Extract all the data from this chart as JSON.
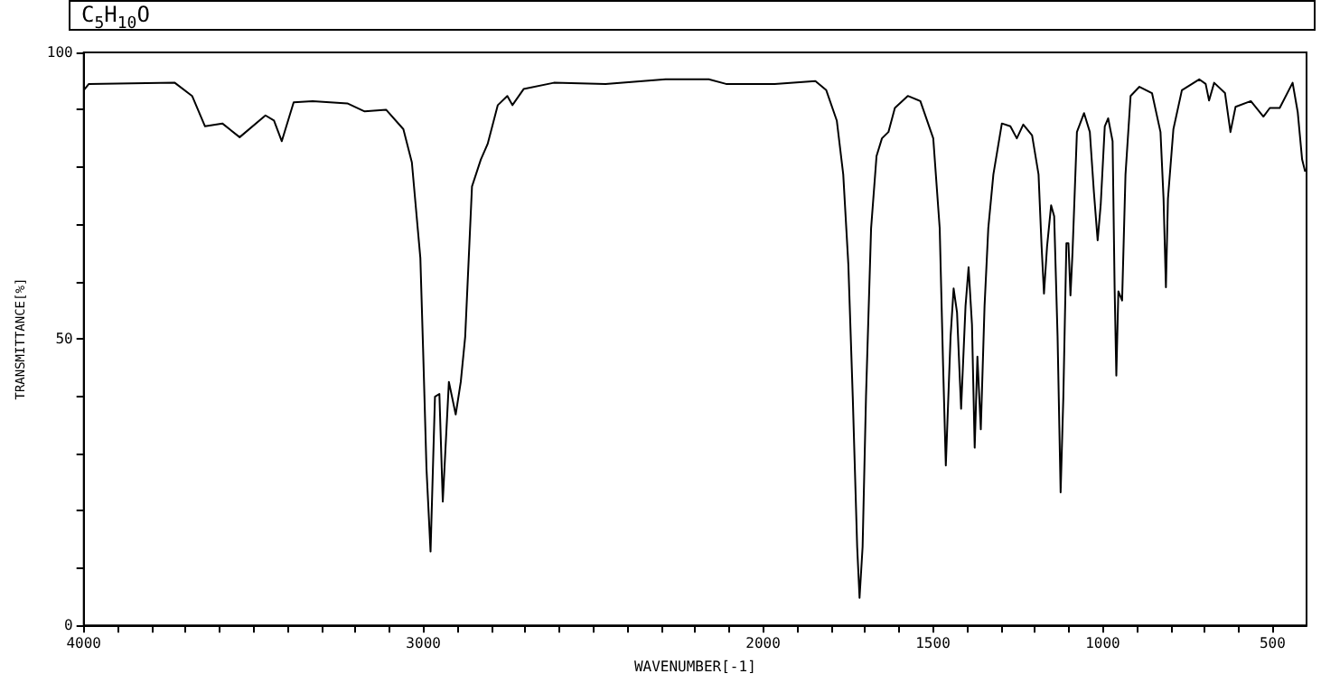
{
  "chart_data": {
    "type": "line",
    "title": "C$_{5}$H$_{10}$O",
    "xlabel": "WAVENUMBER[-1]",
    "ylabel": "TRANSMITTANCE[%]",
    "color": "#000000",
    "marker": "none",
    "x": [
      4000,
      3985,
      3732,
      3681,
      3643,
      3592,
      3541,
      3465,
      3440,
      3417,
      3382,
      3326,
      3224,
      3173,
      3110,
      3059,
      3034,
      3009,
      3001,
      2991,
      2979,
      2966,
      2953,
      2943,
      2925,
      2905,
      2890,
      2877,
      2857,
      2831,
      2811,
      2781,
      2753,
      2738,
      2705,
      2616,
      2464,
      2287,
      2160,
      2109,
      1966,
      1846,
      1814,
      1783,
      1764,
      1749,
      1736,
      1723,
      1716,
      1707,
      1697,
      1682,
      1666,
      1650,
      1631,
      1612,
      1574,
      1537,
      1499,
      1480,
      1470,
      1462,
      1448,
      1439,
      1429,
      1417,
      1404,
      1395,
      1385,
      1377,
      1369,
      1359,
      1348,
      1337,
      1322,
      1297,
      1272,
      1253,
      1234,
      1208,
      1189,
      1180,
      1173,
      1164,
      1152,
      1143,
      1133,
      1124,
      1116,
      1107,
      1101,
      1095,
      1089,
      1076,
      1055,
      1038,
      1026,
      1015,
      1006,
      994,
      984,
      971,
      965,
      960,
      954,
      943,
      933,
      918,
      892,
      855,
      830,
      821,
      814,
      808,
      792,
      767,
      716,
      697,
      687,
      672,
      640,
      624,
      609,
      564,
      527,
      508,
      479,
      441,
      426,
      413,
      404
    ],
    "values": [
      93.4,
      94.5,
      94.7,
      92.4,
      87.1,
      87.6,
      85.2,
      89.0,
      88.1,
      84.5,
      91.3,
      91.5,
      91.1,
      89.7,
      90.0,
      86.6,
      80.8,
      64.1,
      48.3,
      27.4,
      12.9,
      39.9,
      40.4,
      21.6,
      42.5,
      36.8,
      42.5,
      50.4,
      76.6,
      81.3,
      84.0,
      90.8,
      92.4,
      90.8,
      93.6,
      94.7,
      94.5,
      95.3,
      95.3,
      94.5,
      94.5,
      95.0,
      93.4,
      88.1,
      78.7,
      63.0,
      39.9,
      13.7,
      4.8,
      13.7,
      39.9,
      69.3,
      81.9,
      85.0,
      86.1,
      90.3,
      92.4,
      91.5,
      85.0,
      69.3,
      45.3,
      27.9,
      50.4,
      58.8,
      54.6,
      37.8,
      55.7,
      62.5,
      52.5,
      31.0,
      46.9,
      34.2,
      55.7,
      69.3,
      78.7,
      87.6,
      87.1,
      85.0,
      87.4,
      85.5,
      78.7,
      66.1,
      57.9,
      66.1,
      73.3,
      71.4,
      50.4,
      23.2,
      39.9,
      66.7,
      66.7,
      57.6,
      65.1,
      86.1,
      89.4,
      86.1,
      75.6,
      67.2,
      73.4,
      87.1,
      88.5,
      84.5,
      58.8,
      43.6,
      58.3,
      56.7,
      78.7,
      92.4,
      94.0,
      92.9,
      86.1,
      74.5,
      59.0,
      74.5,
      86.6,
      93.4,
      95.3,
      94.5,
      91.6,
      94.7,
      92.9,
      86.1,
      90.5,
      91.5,
      88.8,
      90.3,
      90.3,
      94.7,
      89.6,
      81.3,
      79.2
    ],
    "xlim": [
      4000,
      400
    ],
    "xticks": [
      4000,
      {
        "value": 3900,
        "label": null
      },
      {
        "value": 3800,
        "label": null
      },
      {
        "value": 3700,
        "label": null
      },
      {
        "value": 3600,
        "label": null
      },
      {
        "value": 3500,
        "label": null
      },
      {
        "value": 3400,
        "label": null
      },
      {
        "value": 3300,
        "label": null
      },
      {
        "value": 3200,
        "label": null
      },
      {
        "value": 3100,
        "label": null
      },
      3000,
      {
        "value": 2900,
        "label": null
      },
      {
        "value": 2800,
        "label": null
      },
      {
        "value": 2700,
        "label": null
      },
      {
        "value": 2600,
        "label": null
      },
      {
        "value": 2500,
        "label": null
      },
      {
        "value": 2400,
        "label": null
      },
      {
        "value": 2300,
        "label": null
      },
      {
        "value": 2200,
        "label": null
      },
      {
        "value": 2100,
        "label": null
      },
      2000,
      {
        "value": 1900,
        "label": null
      },
      {
        "value": 1800,
        "label": null
      },
      {
        "value": 1700,
        "label": null
      },
      {
        "value": 1600,
        "label": null
      },
      1500,
      {
        "value": 1400,
        "label": null
      },
      {
        "value": 1300,
        "label": null
      },
      {
        "value": 1200,
        "label": null
      },
      {
        "value": 1100,
        "label": null
      },
      1000,
      {
        "value": 900,
        "label": null
      },
      {
        "value": 800,
        "label": null
      },
      {
        "value": 700,
        "label": null
      },
      {
        "value": 600,
        "label": null
      },
      500
    ],
    "ylim": [
      0,
      100
    ],
    "yticks": [
      0,
      {
        "value": 10,
        "label": null
      },
      {
        "value": 20,
        "label": null
      },
      {
        "value": 30,
        "label": null
      },
      {
        "value": 40,
        "label": null
      },
      50,
      {
        "value": 60,
        "label": null
      },
      {
        "value": 70,
        "label": null
      },
      {
        "value": 80,
        "label": null
      },
      {
        "value": 90,
        "label": null
      },
      100
    ]
  }
}
